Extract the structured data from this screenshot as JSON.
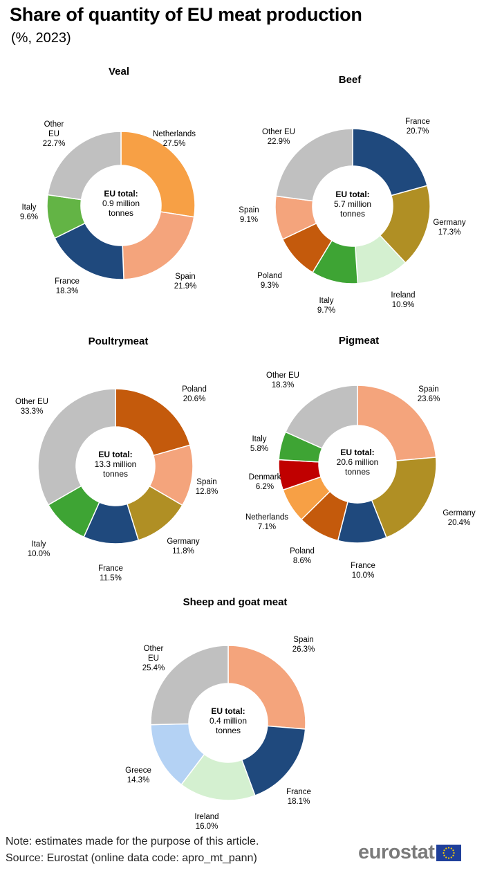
{
  "title": "Share of quantity of EU meat production",
  "subtitle": "(%, 2023)",
  "footer": {
    "note": "Note: estimates made for the purpose of this article.",
    "source": "Source: Eurostat (online data code: apro_mt_pann)"
  },
  "logo": {
    "text": "eurostat",
    "icon": "eu-flag-icon"
  },
  "colors": {
    "navy": "#1f497d",
    "gold": "#b08f24",
    "lightgreen": "#d4f0d0",
    "green": "#3ea434",
    "rust": "#c45a0c",
    "salmon": "#f4a47c",
    "grey": "#c0c0c0",
    "orange": "#f7a045",
    "lime": "#63b445",
    "red": "#c00000",
    "lightblue": "#b4d2f4"
  },
  "chart_data": [
    {
      "type": "pie",
      "title": "Veal",
      "center_label": [
        "EU total:",
        "0.9 million",
        "tonnes"
      ],
      "slices": [
        {
          "name": "Netherlands",
          "value": 27.5,
          "label": "27.5%",
          "color": "#f7a045"
        },
        {
          "name": "Spain",
          "value": 21.9,
          "label": "21.9%",
          "color": "#f4a47c"
        },
        {
          "name": "France",
          "value": 18.3,
          "label": "18.3%",
          "color": "#1f497d"
        },
        {
          "name": "Italy",
          "value": 9.6,
          "label": "9.6%",
          "color": "#63b445"
        },
        {
          "name": "Other EU",
          "value": 22.7,
          "label": "22.7%",
          "color": "#c0c0c0"
        }
      ]
    },
    {
      "type": "pie",
      "title": "Beef",
      "center_label": [
        "EU total:",
        "5.7 million",
        "tonnes"
      ],
      "slices": [
        {
          "name": "France",
          "value": 20.7,
          "label": "20.7%",
          "color": "#1f497d"
        },
        {
          "name": "Germany",
          "value": 17.3,
          "label": "17.3%",
          "color": "#b08f24"
        },
        {
          "name": "Ireland",
          "value": 10.9,
          "label": "10.9%",
          "color": "#d4f0d0"
        },
        {
          "name": "Italy",
          "value": 9.7,
          "label": "9.7%",
          "color": "#3ea434"
        },
        {
          "name": "Poland",
          "value": 9.3,
          "label": "9.3%",
          "color": "#c45a0c"
        },
        {
          "name": "Spain",
          "value": 9.1,
          "label": "9.1%",
          "color": "#f4a47c"
        },
        {
          "name": "Other EU",
          "value": 22.9,
          "label": "22.9%",
          "color": "#c0c0c0"
        }
      ]
    },
    {
      "type": "pie",
      "title": "Poultrymeat",
      "center_label": [
        "EU total:",
        "13.3 million",
        "tonnes"
      ],
      "slices": [
        {
          "name": "Poland",
          "value": 20.6,
          "label": "20.6%",
          "color": "#c45a0c"
        },
        {
          "name": "Spain",
          "value": 12.8,
          "label": "12.8%",
          "color": "#f4a47c"
        },
        {
          "name": "Germany",
          "value": 11.8,
          "label": "11.8%",
          "color": "#b08f24"
        },
        {
          "name": "France",
          "value": 11.5,
          "label": "11.5%",
          "color": "#1f497d"
        },
        {
          "name": "Italy",
          "value": 10.0,
          "label": "10.0%",
          "color": "#3ea434"
        },
        {
          "name": "Other EU",
          "value": 33.3,
          "label": "33.3%",
          "color": "#c0c0c0"
        }
      ]
    },
    {
      "type": "pie",
      "title": "Pigmeat",
      "center_label": [
        "EU total:",
        "20.6 million",
        "tonnes"
      ],
      "slices": [
        {
          "name": "Spain",
          "value": 23.6,
          "label": "23.6%",
          "color": "#f4a47c"
        },
        {
          "name": "Germany",
          "value": 20.4,
          "label": "20.4%",
          "color": "#b08f24"
        },
        {
          "name": "France",
          "value": 10.0,
          "label": "10.0%",
          "color": "#1f497d"
        },
        {
          "name": "Poland",
          "value": 8.6,
          "label": "8.6%",
          "color": "#c45a0c"
        },
        {
          "name": "Netherlands",
          "value": 7.1,
          "label": "7.1%",
          "color": "#f7a045"
        },
        {
          "name": "Denmark",
          "value": 6.2,
          "label": "6.2%",
          "color": "#c00000"
        },
        {
          "name": "Italy",
          "value": 5.8,
          "label": "5.8%",
          "color": "#3ea434"
        },
        {
          "name": "Other EU",
          "value": 18.3,
          "label": "18.3%",
          "color": "#c0c0c0"
        }
      ]
    },
    {
      "type": "pie",
      "title": "Sheep and goat meat",
      "center_label": [
        "EU total:",
        "0.4 million",
        "tonnes"
      ],
      "slices": [
        {
          "name": "Spain",
          "value": 26.3,
          "label": "26.3%",
          "color": "#f4a47c"
        },
        {
          "name": "France",
          "value": 18.1,
          "label": "18.1%",
          "color": "#1f497d"
        },
        {
          "name": "Ireland",
          "value": 16.0,
          "label": "16.0%",
          "color": "#d4f0d0"
        },
        {
          "name": "Greece",
          "value": 14.3,
          "label": "14.3%",
          "color": "#b4d2f4"
        },
        {
          "name": "Other EU",
          "value": 25.4,
          "label": "25.4%",
          "color": "#c0c0c0"
        }
      ]
    }
  ]
}
